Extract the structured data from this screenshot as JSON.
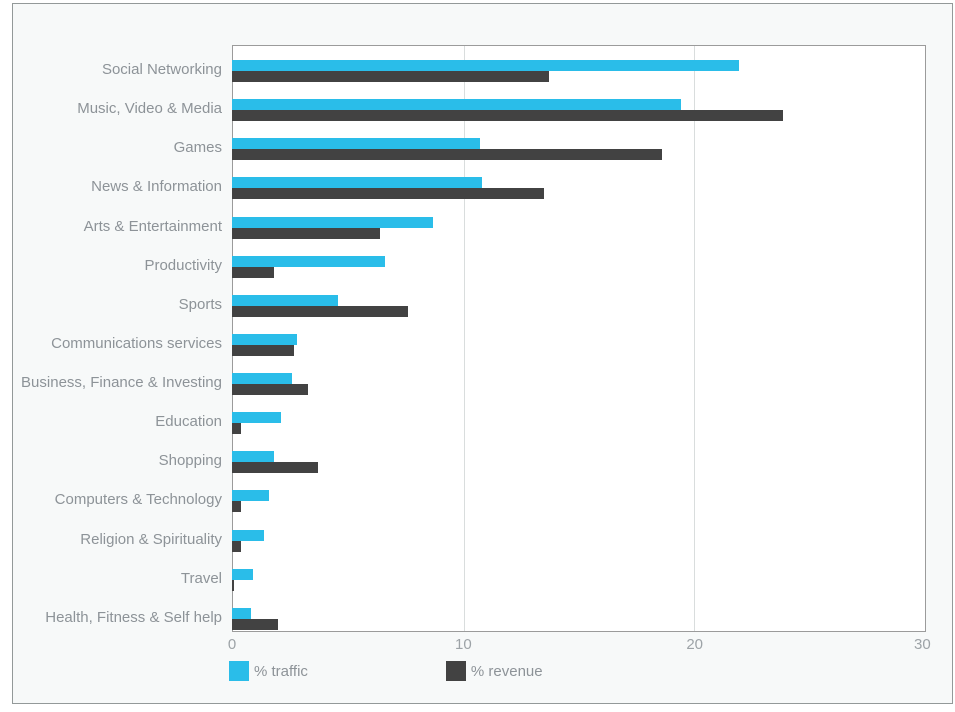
{
  "theme": {
    "page_bg": "#ffffff",
    "panel_bg": "#f7f9f9",
    "panel_border": "#939999",
    "plot_bg": "#ffffff",
    "plot_border": "#9b9b9b",
    "gridline": "#d9dddd",
    "label_color": "#8d9398",
    "tick_color": "#9da3a7"
  },
  "chart_data": {
    "type": "bar",
    "orientation": "horizontal",
    "title": "",
    "categories": [
      "Social Networking",
      "Music, Video & Media",
      "Games",
      "News & Information",
      "Arts & Entertainment",
      "Productivity",
      "Sports",
      "Communications services",
      "Business, Finance & Investing",
      "Education",
      "Shopping",
      "Computers & Technology",
      "Religion & Spirituality",
      "Travel",
      "Health, Fitness & Self help"
    ],
    "series": [
      {
        "name": "% traffic",
        "color": "#2abde9",
        "values": [
          21.9,
          19.4,
          10.7,
          10.8,
          8.7,
          6.6,
          4.6,
          2.8,
          2.6,
          2.1,
          1.8,
          1.6,
          1.4,
          0.9,
          0.8
        ]
      },
      {
        "name": "% revenue",
        "color": "#424242",
        "values": [
          13.7,
          23.8,
          18.6,
          13.5,
          6.4,
          1.8,
          7.6,
          2.7,
          3.3,
          0.4,
          3.7,
          0.4,
          0.4,
          0.1,
          2.0
        ]
      }
    ],
    "xlim": [
      0,
      30
    ],
    "xticks": [
      0,
      10,
      20,
      30
    ],
    "grid": true,
    "legend_position": "bottom"
  }
}
